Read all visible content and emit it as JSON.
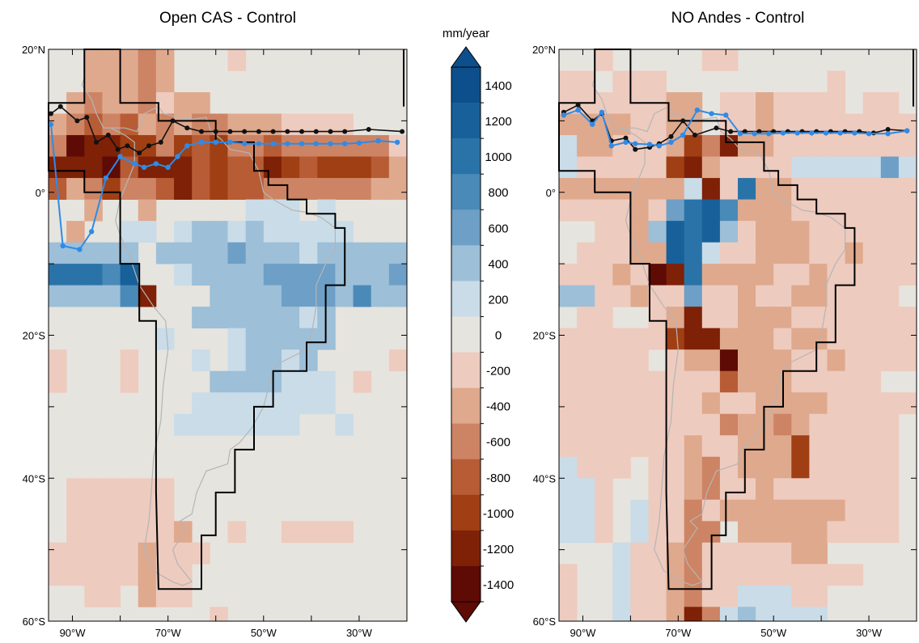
{
  "panels": [
    {
      "title": "Open CAS - Control",
      "lon_ticks": [
        "90°W",
        "70°W",
        "50°W",
        "30°W"
      ],
      "lat_ticks": [
        "20°N",
        "0°",
        "20°S",
        "40°S",
        "60°S"
      ]
    },
    {
      "title": "NO Andes - Control",
      "lon_ticks": [
        "90°W",
        "70°W",
        "50°W",
        "30°W"
      ],
      "lat_ticks": [
        "20°N",
        "0°",
        "20°S",
        "40°S",
        "60°S"
      ]
    }
  ],
  "colorbar": {
    "unit": "mm/year",
    "labels": [
      "1400",
      "1200",
      "1000",
      "800",
      "600",
      "400",
      "200",
      "0",
      "-200",
      "-400",
      "-600",
      "-800",
      "-1000",
      "-1200",
      "-1400"
    ],
    "colors": [
      "#0d4f8c",
      "#17609a",
      "#2a73a8",
      "#4a8ab8",
      "#6e9fc6",
      "#9dbfd8",
      "#c9dce8",
      "#e6e4de",
      "#eecbbf",
      "#dfa98e",
      "#cd8464",
      "#b75c35",
      "#a03f14",
      "#7e2107",
      "#5e0a05"
    ]
  },
  "legend_colors": {
    "black_line": "#111111",
    "blue_line": "#2f8be6"
  }
}
